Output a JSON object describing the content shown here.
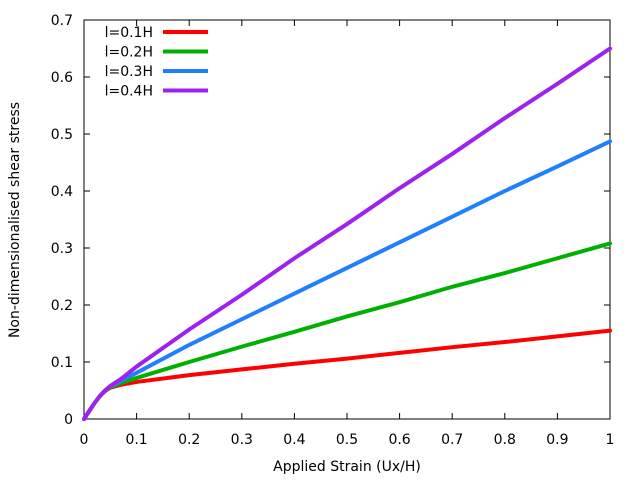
{
  "chart_data": {
    "type": "line",
    "title": "",
    "xlabel": "Applied Strain (Ux/H)",
    "ylabel": "Non-dimensionalised shear stress",
    "xlim": [
      0,
      1
    ],
    "ylim": [
      0,
      0.7
    ],
    "x_ticks": [
      "0",
      "0.1",
      "0.2",
      "0.3",
      "0.4",
      "0.5",
      "0.6",
      "0.7",
      "0.8",
      "0.9",
      "1"
    ],
    "y_ticks": [
      "0",
      "0.1",
      "0.2",
      "0.3",
      "0.4",
      "0.5",
      "0.6",
      "0.7"
    ],
    "grid": false,
    "legend_position": "top-left",
    "series": [
      {
        "name": "l=0.1H",
        "color": "#ff0000",
        "x": [
          0,
          0.01,
          0.02,
          0.03,
          0.04,
          0.05,
          0.07,
          0.1,
          0.2,
          0.3,
          0.4,
          0.5,
          0.6,
          0.7,
          0.8,
          0.9,
          1.0
        ],
        "y": [
          0,
          0.014,
          0.028,
          0.04,
          0.049,
          0.055,
          0.06,
          0.065,
          0.077,
          0.087,
          0.097,
          0.106,
          0.116,
          0.126,
          0.135,
          0.145,
          0.155
        ]
      },
      {
        "name": "l=0.2H",
        "color": "#00b000",
        "x": [
          0,
          0.01,
          0.02,
          0.03,
          0.04,
          0.05,
          0.07,
          0.1,
          0.2,
          0.3,
          0.4,
          0.5,
          0.6,
          0.7,
          0.8,
          0.9,
          1.0
        ],
        "y": [
          0,
          0.014,
          0.028,
          0.04,
          0.049,
          0.056,
          0.063,
          0.072,
          0.1,
          0.127,
          0.153,
          0.18,
          0.205,
          0.232,
          0.256,
          0.282,
          0.308
        ]
      },
      {
        "name": "l=0.3H",
        "color": "#1f7fff",
        "x": [
          0,
          0.01,
          0.02,
          0.03,
          0.04,
          0.05,
          0.07,
          0.1,
          0.2,
          0.3,
          0.4,
          0.5,
          0.6,
          0.7,
          0.8,
          0.9,
          1.0
        ],
        "y": [
          0,
          0.014,
          0.028,
          0.04,
          0.05,
          0.057,
          0.067,
          0.081,
          0.13,
          0.175,
          0.22,
          0.265,
          0.31,
          0.355,
          0.4,
          0.443,
          0.487
        ]
      },
      {
        "name": "l=0.4H",
        "color": "#a020f0",
        "x": [
          0,
          0.01,
          0.02,
          0.03,
          0.04,
          0.05,
          0.07,
          0.1,
          0.2,
          0.3,
          0.4,
          0.5,
          0.6,
          0.7,
          0.8,
          0.9,
          1.0
        ],
        "y": [
          0,
          0.014,
          0.028,
          0.04,
          0.05,
          0.058,
          0.07,
          0.092,
          0.157,
          0.218,
          0.282,
          0.342,
          0.405,
          0.465,
          0.528,
          0.588,
          0.65
        ]
      }
    ]
  }
}
